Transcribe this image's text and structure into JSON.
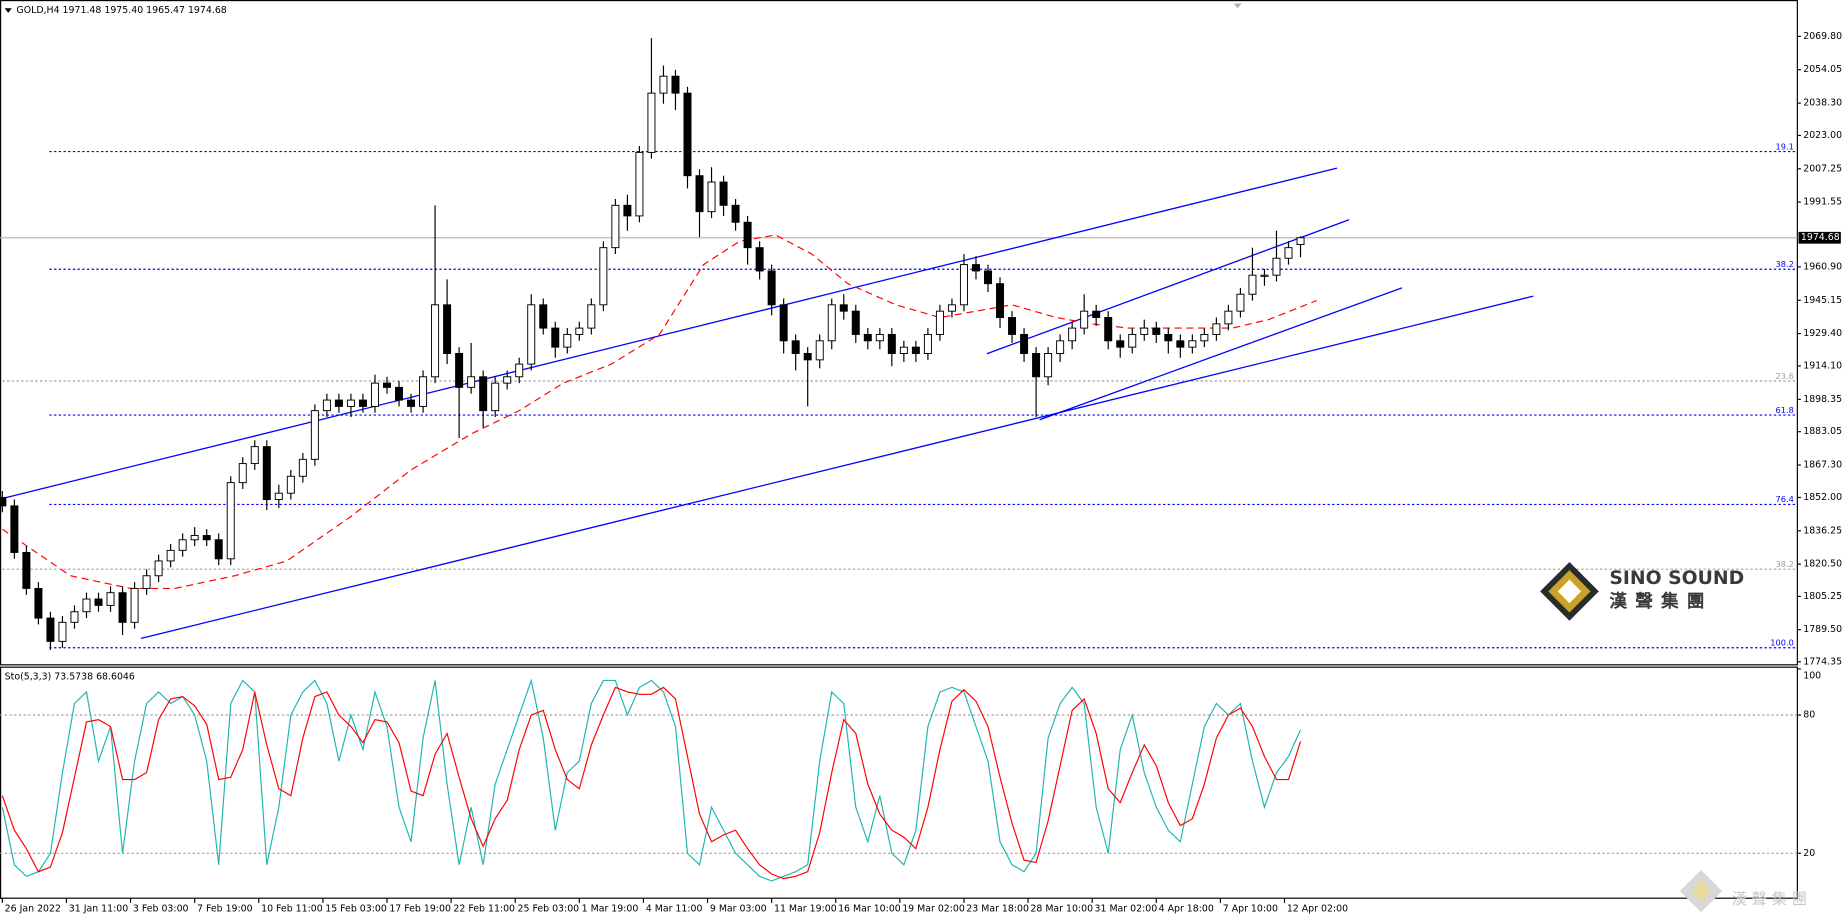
{
  "chart_data": [
    {
      "type": "candlestick",
      "title": "GOLD,H4  1971.48 1975.40 1965.47 1974.68",
      "x": [
        0,
        3,
        6,
        9,
        12,
        15,
        18,
        21,
        24,
        27,
        30,
        33,
        36,
        39,
        42,
        45,
        48,
        51,
        54,
        57,
        60,
        63,
        66,
        69,
        72,
        75,
        78,
        81,
        84,
        87,
        90,
        93,
        96,
        99,
        102,
        105,
        108,
        111,
        114,
        117,
        120,
        123,
        126,
        129,
        132,
        135,
        138,
        141,
        144,
        147,
        150,
        153,
        156,
        159,
        162,
        165,
        168,
        171,
        174,
        177,
        180,
        183,
        186,
        189,
        192,
        195,
        198,
        201,
        204,
        207,
        210,
        213,
        216,
        219,
        222,
        225,
        228,
        231,
        234,
        237,
        240,
        243,
        246,
        249,
        252,
        255,
        258,
        261,
        264,
        267,
        270,
        273,
        276,
        279,
        282,
        285,
        288,
        291,
        294,
        297,
        300,
        303,
        306,
        309,
        312,
        315,
        318,
        321,
        324
      ],
      "open": [
        1852,
        1848,
        1826,
        1809,
        1795,
        1784,
        1793,
        1798,
        1804,
        1801,
        1807,
        1793,
        1809,
        1815,
        1822,
        1827,
        1832,
        1834,
        1832,
        1823,
        1859,
        1868,
        1876,
        1851,
        1854,
        1862,
        1870,
        1893,
        1898,
        1895,
        1898,
        1895,
        1906,
        1904,
        1898,
        1895,
        1909,
        1943,
        1920,
        1904,
        1909,
        1893,
        1906,
        1909,
        1915,
        1943,
        1932,
        1923,
        1929,
        1932,
        1943,
        1970,
        1990,
        1985,
        2015,
        2043,
        2051,
        2043,
        2004,
        1987,
        2001,
        1990,
        1982,
        1970,
        1959,
        1943,
        1926,
        1920,
        1917,
        1926,
        1943,
        1940,
        1929,
        1926,
        1929,
        1920,
        1923,
        1920,
        1929,
        1940,
        1943,
        1962,
        1959,
        1953,
        1937,
        1929,
        1920,
        1909,
        1920,
        1926,
        1932,
        1940,
        1937,
        1926,
        1923,
        1929,
        1932,
        1929,
        1926,
        1923,
        1926,
        1929,
        1934,
        1940,
        1948,
        1957,
        1957,
        1965,
        1971.48
      ],
      "high": [
        1855,
        1851,
        1829,
        1812,
        1798,
        1796,
        1801,
        1807,
        1807,
        1810,
        1810,
        1812,
        1818,
        1825,
        1830,
        1835,
        1838,
        1837,
        1835,
        1862,
        1871,
        1879,
        1879,
        1858,
        1865,
        1873,
        1896,
        1901,
        1901,
        1901,
        1901,
        1910,
        1909,
        1907,
        1901,
        1912,
        1990,
        1955,
        1923,
        1925,
        1912,
        1909,
        1912,
        1918,
        1948,
        1946,
        1935,
        1932,
        1935,
        1946,
        1973,
        1993,
        1995,
        2018,
        2069,
        2056,
        2054,
        2046,
        2007,
        2008,
        2004,
        1993,
        1985,
        1973,
        1962,
        1946,
        1929,
        1923,
        1929,
        1946,
        1948,
        1943,
        1932,
        1932,
        1932,
        1926,
        1926,
        1932,
        1943,
        1946,
        1967,
        1966,
        1962,
        1956,
        1940,
        1932,
        1923,
        1923,
        1929,
        1935,
        1948,
        1943,
        1940,
        1929,
        1932,
        1936,
        1935,
        1932,
        1929,
        1929,
        1932,
        1937,
        1943,
        1951,
        1970,
        1960,
        1978,
        1973,
        1975.4
      ],
      "low": [
        1845,
        1823,
        1806,
        1792,
        1780,
        1781,
        1790,
        1795,
        1798,
        1798,
        1787,
        1790,
        1806,
        1812,
        1819,
        1824,
        1829,
        1829,
        1820,
        1820,
        1856,
        1865,
        1846,
        1847,
        1851,
        1859,
        1867,
        1890,
        1892,
        1890,
        1892,
        1892,
        1901,
        1895,
        1892,
        1892,
        1906,
        1915,
        1880,
        1901,
        1885,
        1890,
        1903,
        1906,
        1912,
        1929,
        1918,
        1920,
        1926,
        1929,
        1940,
        1967,
        1978,
        1982,
        2012,
        2038,
        2035,
        1998,
        1975,
        1984,
        1985,
        1978,
        1962,
        1955,
        1938,
        1920,
        1912,
        1895,
        1913,
        1922,
        1936,
        1925,
        1922,
        1922,
        1914,
        1916,
        1916,
        1917,
        1926,
        1937,
        1940,
        1955,
        1949,
        1932,
        1925,
        1916,
        1890,
        1905,
        1916,
        1922,
        1929,
        1933,
        1922,
        1918,
        1920,
        1926,
        1925,
        1920,
        1918,
        1920,
        1923,
        1926,
        1931,
        1937,
        1945,
        1952,
        1954,
        1962,
        1965.47
      ],
      "close": [
        1848,
        1826,
        1809,
        1795,
        1784,
        1793,
        1798,
        1804,
        1801,
        1807,
        1793,
        1809,
        1815,
        1822,
        1827,
        1832,
        1834,
        1832,
        1823,
        1859,
        1868,
        1876,
        1851,
        1854,
        1862,
        1870,
        1893,
        1898,
        1895,
        1898,
        1895,
        1906,
        1904,
        1898,
        1895,
        1909,
        1943,
        1920,
        1904,
        1909,
        1893,
        1906,
        1909,
        1915,
        1943,
        1932,
        1923,
        1929,
        1932,
        1943,
        1970,
        1990,
        1985,
        2015,
        2043,
        2051,
        2043,
        2004,
        1987,
        2001,
        1990,
        1982,
        1970,
        1959,
        1943,
        1926,
        1920,
        1917,
        1926,
        1943,
        1940,
        1929,
        1926,
        1929,
        1920,
        1923,
        1920,
        1929,
        1940,
        1943,
        1962,
        1959,
        1953,
        1937,
        1929,
        1920,
        1909,
        1920,
        1926,
        1932,
        1940,
        1937,
        1926,
        1923,
        1929,
        1932,
        1929,
        1926,
        1923,
        1926,
        1929,
        1934,
        1940,
        1948,
        1957,
        1957,
        1965,
        1970,
        1974.68
      ],
      "up_color": "#ffffff",
      "down_color": "#000000",
      "moving_average": {
        "color": "#ff0000",
        "x": [
          0,
          17,
          32,
          43,
          58,
          71,
          87,
          102,
          117,
          129,
          140,
          152,
          164,
          175,
          184,
          193,
          202,
          211,
          223,
          234,
          243,
          252,
          263,
          272,
          281,
          293,
          307,
          316,
          328
        ],
        "values": [
          1837,
          1815,
          1809,
          1809,
          1815,
          1822,
          1843,
          1865,
          1882,
          1893,
          1906,
          1915,
          1929,
          1962,
          1973,
          1976,
          1967,
          1953,
          1943,
          1937,
          1940,
          1943,
          1937,
          1934,
          1932,
          1932,
          1932,
          1936,
          1945
        ]
      },
      "trendlines": {
        "color": "#0000ff",
        "lines": [
          {
            "x": [
              0,
              333.1
            ],
            "y": [
              1851.5,
              2007.6
            ]
          },
          {
            "x": [
              34.6,
              382.1
            ],
            "y": [
              1785.4,
              1947.1
            ]
          },
          {
            "x": [
              245.7,
              336.1
            ],
            "y": [
              1919.9,
              1983.2
            ]
          },
          {
            "x": [
              258.9,
              349.3
            ],
            "y": [
              1888.7,
              1951.0
            ]
          }
        ]
      },
      "levels": [
        {
          "label": "19.1",
          "value": 2015.4,
          "color": "#0000ff"
        },
        {
          "label": "38.2",
          "value": 1959.8,
          "color": "#0000ff"
        },
        {
          "label": "23.6",
          "value": 1907.0,
          "color": "#a0a0a0"
        },
        {
          "label": "61.8",
          "value": 1890.9,
          "color": "#0000ff"
        },
        {
          "label": "76.4",
          "value": 1848.7,
          "color": "#0000ff"
        },
        {
          "label": "38.2",
          "value": 1818.1,
          "color": "#a0a0a0"
        },
        {
          "label": "100.0",
          "value": 1781.0,
          "color": "#0000ff"
        }
      ],
      "last_price": 1974.68,
      "xlim": [
        0,
        448
      ],
      "xticks": [
        {
          "value": 0,
          "label": "26 Jan 2022"
        },
        {
          "value": 16,
          "label": "31 Jan 11:00"
        },
        {
          "value": 32,
          "label": "3 Feb 03:00"
        },
        {
          "value": 48,
          "label": "7 Feb 19:00"
        },
        {
          "value": 64,
          "label": "10 Feb 11:00"
        },
        {
          "value": 80,
          "label": "15 Feb 03:00"
        },
        {
          "value": 96,
          "label": "17 Feb 19:00"
        },
        {
          "value": 112,
          "label": "22 Feb 11:00"
        },
        {
          "value": 128,
          "label": "25 Feb 03:00"
        },
        {
          "value": 144,
          "label": "1 Mar 19:00"
        },
        {
          "value": 160,
          "label": "4 Mar 11:00"
        },
        {
          "value": 176,
          "label": "9 Mar 03:00"
        },
        {
          "value": 192,
          "label": "11 Mar 19:00"
        },
        {
          "value": 208,
          "label": "16 Mar 10:00"
        },
        {
          "value": 224,
          "label": "19 Mar 02:00"
        },
        {
          "value": 240,
          "label": "23 Mar 18:00"
        },
        {
          "value": 256,
          "label": "28 Mar 10:00"
        },
        {
          "value": 272,
          "label": "31 Mar 02:00"
        },
        {
          "value": 288,
          "label": "4 Apr 18:00"
        },
        {
          "value": 304,
          "label": "7 Apr 10:00"
        },
        {
          "value": 320,
          "label": "12 Apr 02:00"
        }
      ],
      "ylim": [
        1773.2,
        2087.0
      ],
      "yticks": [
        {
          "value": 2069.8,
          "label": "2069.80"
        },
        {
          "value": 2054.05,
          "label": "2054.05"
        },
        {
          "value": 2038.3,
          "label": "2038.30"
        },
        {
          "value": 2023,
          "label": "2023.00"
        },
        {
          "value": 2007.25,
          "label": "2007.25"
        },
        {
          "value": 1991.55,
          "label": "1991.55"
        },
        {
          "value": 1960.9,
          "label": "1960.90"
        },
        {
          "value": 1945.15,
          "label": "1945.15"
        },
        {
          "value": 1929.4,
          "label": "1929.40"
        },
        {
          "value": 1914.1,
          "label": "1914.10"
        },
        {
          "value": 1898.35,
          "label": "1898.35"
        },
        {
          "value": 1883.05,
          "label": "1883.05"
        },
        {
          "value": 1867.3,
          "label": "1867.30"
        },
        {
          "value": 1852,
          "label": "1852.00"
        },
        {
          "value": 1836.25,
          "label": "1836.25"
        },
        {
          "value": 1820.5,
          "label": "1820.50"
        },
        {
          "value": 1805.25,
          "label": "1805.25"
        },
        {
          "value": 1789.5,
          "label": "1789.50"
        },
        {
          "value": 1774.35,
          "label": "1774.35"
        }
      ]
    },
    {
      "type": "line",
      "title": "Sto(5,3,3) 73.5738 68.6046",
      "series": [
        {
          "color": "#1fb5b0",
          "values": [
            40,
            15,
            10,
            12,
            20,
            55,
            85,
            90,
            60,
            75,
            20,
            60,
            85,
            90,
            85,
            88,
            80,
            60,
            15,
            85,
            95,
            90,
            15,
            40,
            80,
            90,
            95,
            85,
            60,
            80,
            65,
            90,
            75,
            40,
            25,
            70,
            95,
            50,
            15,
            40,
            15,
            50,
            65,
            80,
            95,
            70,
            30,
            55,
            60,
            85,
            95,
            95,
            80,
            92,
            95,
            90,
            75,
            20,
            15,
            40,
            30,
            20,
            15,
            10,
            8,
            10,
            12,
            15,
            60,
            90,
            85,
            40,
            25,
            45,
            20,
            15,
            30,
            75,
            90,
            92,
            90,
            75,
            60,
            25,
            15,
            12,
            20,
            70,
            85,
            92,
            85,
            40,
            20,
            65,
            80,
            55,
            40,
            30,
            25,
            50,
            75,
            85,
            80,
            85,
            60,
            40,
            55,
            62,
            73.5738
          ]
        },
        {
          "color": "#ff0000",
          "values": [
            45,
            30,
            22,
            12,
            14,
            29,
            53,
            77,
            78,
            75,
            52,
            52,
            55,
            78,
            87,
            88,
            84,
            76,
            52,
            53,
            65,
            90,
            67,
            48,
            45,
            70,
            88,
            90,
            80,
            75,
            68,
            78,
            77,
            68,
            47,
            45,
            63,
            72,
            53,
            35,
            23,
            35,
            43,
            65,
            80,
            82,
            65,
            52,
            48,
            67,
            80,
            92,
            90,
            89,
            89,
            92,
            87,
            62,
            37,
            25,
            28,
            30,
            22,
            15,
            11,
            9,
            10,
            12,
            29,
            55,
            78,
            72,
            50,
            37,
            30,
            27,
            22,
            40,
            65,
            86,
            91,
            86,
            75,
            53,
            33,
            17,
            16,
            34,
            58,
            82,
            87,
            72,
            48,
            42,
            55,
            67,
            58,
            42,
            32,
            35,
            50,
            70,
            80,
            83,
            75,
            62,
            52,
            52,
            68.6046
          ]
        }
      ],
      "ylim": [
        0,
        100
      ],
      "yticks": [
        100,
        80,
        20
      ],
      "grid": true
    }
  ],
  "watermark": {
    "name": "SINO SOUND",
    "chinese": "漢聲集團",
    "corner_chinese": "漢 聲 集 團"
  }
}
